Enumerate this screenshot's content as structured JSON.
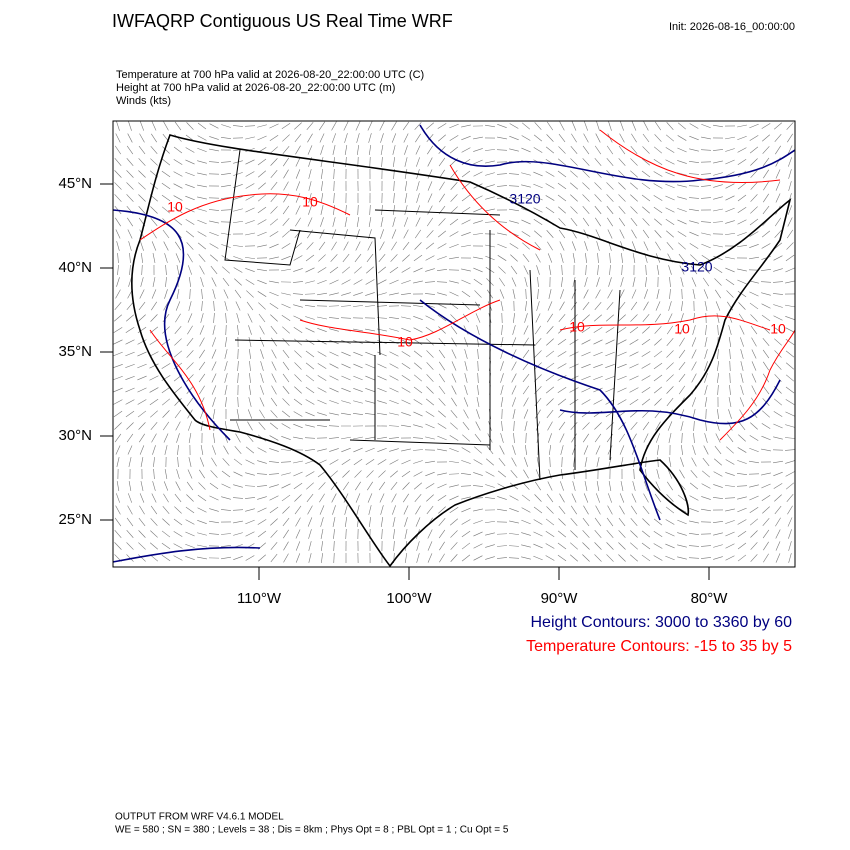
{
  "header": {
    "title": "IWFAQRP Contiguous US Real Time WRF",
    "init": "Init: 2026-08-16_00:00:00"
  },
  "fields": [
    "Temperature at 700 hPa valid at 2026-08-20_22:00:00 UTC   (C)",
    "Height at 700 hPa valid at 2026-08-20_22:00:00 UTC   (m)",
    "Winds   (kts)"
  ],
  "map": {
    "lat_labels": [
      "45°N",
      "40°N",
      "35°N",
      "30°N",
      "25°N"
    ],
    "lon_labels": [
      "110°W",
      "100°W",
      "90°W",
      "80°W"
    ],
    "contour_labels": [
      {
        "text": "10",
        "color": "red"
      },
      {
        "text": "10",
        "color": "red"
      },
      {
        "text": "10",
        "color": "red"
      },
      {
        "text": "10",
        "color": "red"
      },
      {
        "text": "10",
        "color": "red"
      },
      {
        "text": "10",
        "color": "red"
      },
      {
        "text": "3120",
        "color": "navy"
      },
      {
        "text": "3120",
        "color": "navy"
      }
    ]
  },
  "legend": [
    {
      "text": "Height Contours: 3000 to 3360 by 60",
      "color": "navy"
    },
    {
      "text": "Temperature Contours: -15 to 35 by 5",
      "color": "red"
    }
  ],
  "footer": [
    "OUTPUT FROM WRF V4.6.1 MODEL",
    "WE = 580 ; SN = 380 ; Levels = 38 ; Dis = 8km ; Phys Opt = 8 ; PBL Opt = 1 ; Cu Opt = 5"
  ]
}
